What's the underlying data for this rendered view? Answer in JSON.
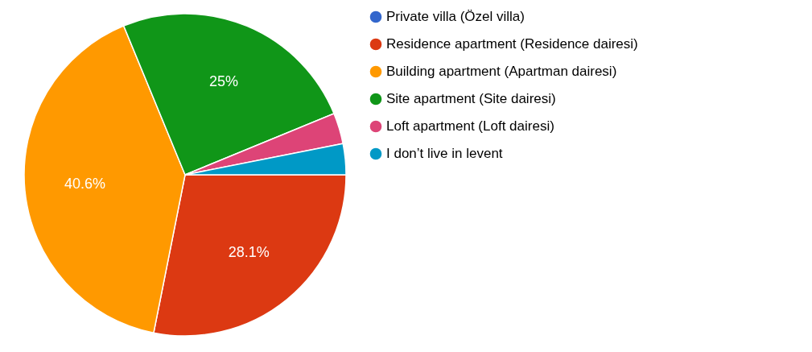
{
  "chart_data": {
    "type": "pie",
    "categories": [
      "Private villa (Özel villa)",
      "Residence apartment (Residence dairesi)",
      "Building apartment (Apartman dairesi)",
      "Site apartment (Site dairesi)",
      "Loft apartment (Loft dairesi)",
      "I don’t live in levent"
    ],
    "values": [
      0,
      28.1,
      40.6,
      25,
      3.1,
      3.1
    ],
    "colors": [
      "#3366cc",
      "#dc3912",
      "#ff9900",
      "#109618",
      "#dd4477",
      "#0099c6"
    ],
    "value_labels": [
      null,
      "28.1%",
      "40.6%",
      "25%",
      null,
      null
    ],
    "legend": "right"
  }
}
